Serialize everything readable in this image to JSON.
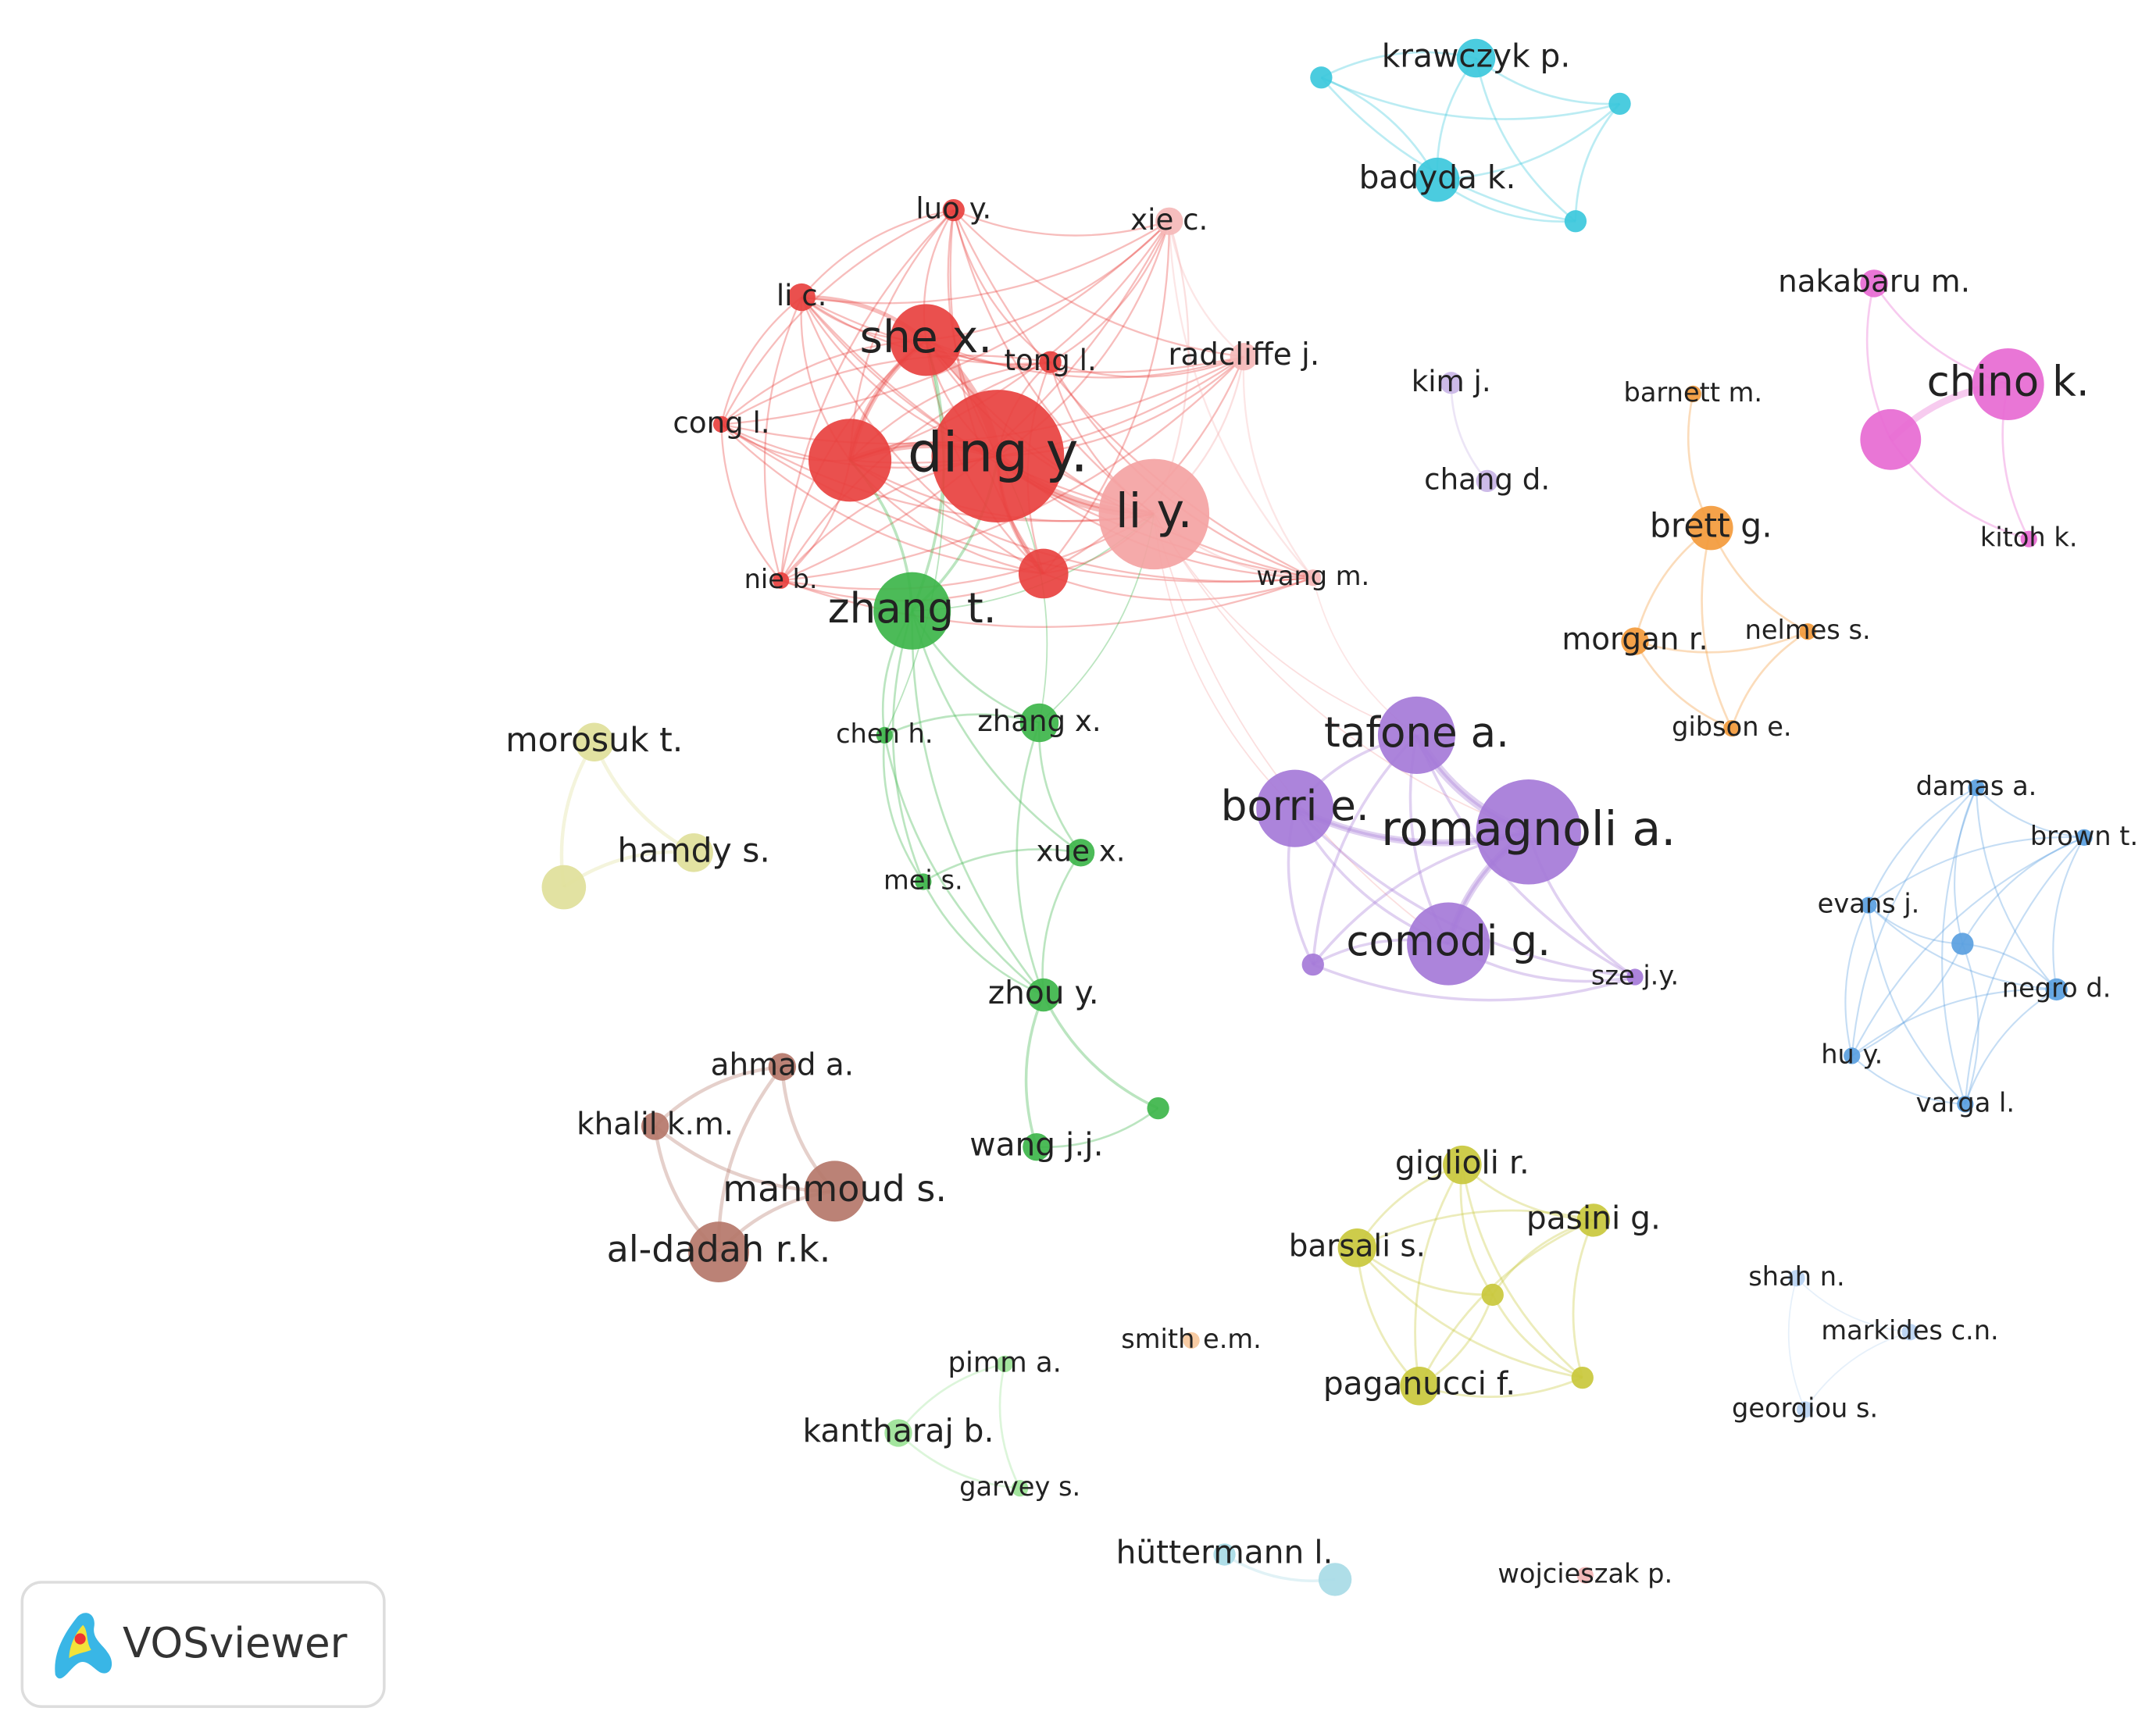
{
  "nodes": [
    {
      "label": "luo y."
    },
    {
      "label": "li c."
    },
    {
      "label": "she x."
    },
    {
      "label": "tong l."
    },
    {
      "label": "cong l."
    },
    {
      "label": "ding y."
    },
    {
      "label": "nie b."
    },
    {
      "label": "li y."
    },
    {
      "label": "xie c."
    },
    {
      "label": "radcliffe j."
    },
    {
      "label": "wang m."
    },
    {
      "label": "zhang t."
    },
    {
      "label": "chen h."
    },
    {
      "label": "zhang x."
    },
    {
      "label": "xue x."
    },
    {
      "label": "mei s."
    },
    {
      "label": "zhou y."
    },
    {
      "label": "wang j.j."
    },
    {
      "label": "pimm a."
    },
    {
      "label": "kantharaj b."
    },
    {
      "label": "garvey s."
    },
    {
      "label": "krawczyk p."
    },
    {
      "label": "badyda k."
    },
    {
      "label": "hüttermann l."
    },
    {
      "label": "tafone a."
    },
    {
      "label": "borri e."
    },
    {
      "label": "romagnoli a."
    },
    {
      "label": "comodi g."
    },
    {
      "label": "sze j.y."
    },
    {
      "label": "kim j."
    },
    {
      "label": "chang d."
    },
    {
      "label": "barnett m."
    },
    {
      "label": "brett g."
    },
    {
      "label": "morgan r."
    },
    {
      "label": "nelmes s."
    },
    {
      "label": "gibson e."
    },
    {
      "label": "nakabaru m."
    },
    {
      "label": "chino k."
    },
    {
      "label": "kitoh k."
    },
    {
      "label": "damas a."
    },
    {
      "label": "brown t."
    },
    {
      "label": "evans j."
    },
    {
      "label": "negro d."
    },
    {
      "label": "hu y."
    },
    {
      "label": "varga l."
    },
    {
      "label": "shah n."
    },
    {
      "label": "markides c.n."
    },
    {
      "label": "georgiou s."
    },
    {
      "label": "giglioli r."
    },
    {
      "label": "pasini g."
    },
    {
      "label": "barsali s."
    },
    {
      "label": "paganucci f."
    },
    {
      "label": "morosuk t."
    },
    {
      "label": "hamdy s."
    },
    {
      "label": "ahmad a."
    },
    {
      "label": "khalil k.m."
    },
    {
      "label": "mahmoud s."
    },
    {
      "label": "al-dadah r.k."
    },
    {
      "label": "smith e.m."
    },
    {
      "label": "wojcieszak p."
    }
  ],
  "logo": {
    "text": "VOSviewer"
  }
}
